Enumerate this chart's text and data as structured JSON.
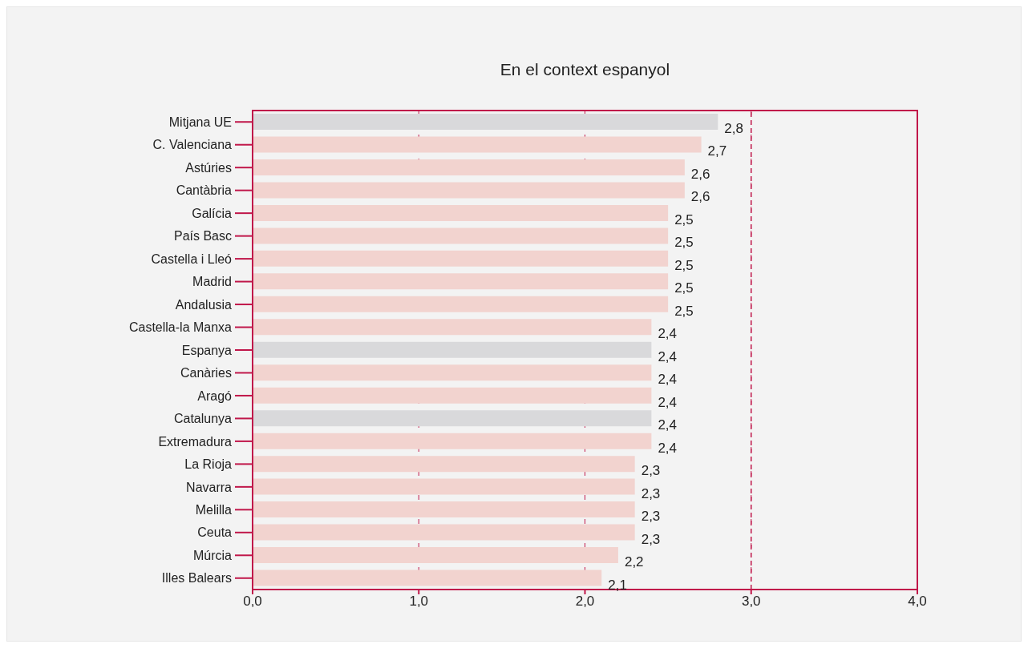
{
  "chart_data": {
    "type": "bar",
    "orientation": "horizontal",
    "title": "En el context espanyol",
    "categories": [
      "Mitjana UE",
      "C. Valenciana",
      "Astúries",
      "Cantàbria",
      "Galícia",
      "País Basc",
      "Castella i Lleó",
      "Madrid",
      "Andalusia",
      "Castella-la Manxa",
      "Espanya",
      "Canàries",
      "Aragó",
      "Catalunya",
      "Extremadura",
      "La Rioja",
      "Navarra",
      "Melilla",
      "Ceuta",
      "Múrcia",
      "Illes Balears"
    ],
    "values": [
      2.8,
      2.7,
      2.6,
      2.6,
      2.5,
      2.5,
      2.5,
      2.5,
      2.5,
      2.4,
      2.4,
      2.4,
      2.4,
      2.4,
      2.4,
      2.3,
      2.3,
      2.3,
      2.3,
      2.2,
      2.1
    ],
    "value_labels": [
      "2,8",
      "2,7",
      "2,6",
      "2,6",
      "2,5",
      "2,5",
      "2,5",
      "2,5",
      "2,5",
      "2,4",
      "2,4",
      "2,4",
      "2,4",
      "2,4",
      "2,4",
      "2,3",
      "2,3",
      "2,3",
      "2,3",
      "2,2",
      "2,1"
    ],
    "colors": [
      "#d9d9db",
      "#f2d3cf",
      "#f2d3cf",
      "#f2d3cf",
      "#f2d3cf",
      "#f2d3cf",
      "#f2d3cf",
      "#f2d3cf",
      "#f2d3cf",
      "#f2d3cf",
      "#d9d9db",
      "#f2d3cf",
      "#f2d3cf",
      "#d9d9db",
      "#f2d3cf",
      "#f2d3cf",
      "#f2d3cf",
      "#f2d3cf",
      "#f2d3cf",
      "#f2d3cf",
      "#f2d3cf"
    ],
    "xlim": [
      0,
      4
    ],
    "xticks": [
      {
        "value": 0,
        "label": "0,0"
      },
      {
        "value": 1,
        "label": "1,0"
      },
      {
        "value": 2,
        "label": "2,0"
      },
      {
        "value": 3,
        "label": "3,0"
      },
      {
        "value": 4,
        "label": "4,0"
      }
    ],
    "grid": "x",
    "ref_lines": [
      {
        "axis": "x",
        "value": 3,
        "label": null,
        "line_style": "dashed"
      }
    ]
  }
}
